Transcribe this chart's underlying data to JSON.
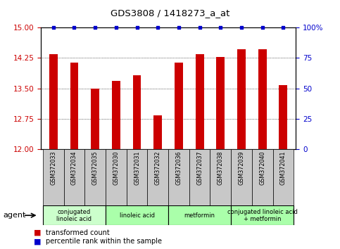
{
  "title": "GDS3808 / 1418273_a_at",
  "samples": [
    "GSM372033",
    "GSM372034",
    "GSM372035",
    "GSM372030",
    "GSM372031",
    "GSM372032",
    "GSM372036",
    "GSM372037",
    "GSM372038",
    "GSM372039",
    "GSM372040",
    "GSM372041"
  ],
  "bar_values": [
    14.35,
    14.13,
    13.5,
    13.68,
    13.82,
    12.83,
    14.13,
    14.35,
    14.28,
    14.47,
    14.47,
    13.58
  ],
  "percentile_values": [
    100,
    100,
    100,
    100,
    100,
    100,
    100,
    100,
    100,
    100,
    100,
    100
  ],
  "bar_color": "#cc0000",
  "percentile_color": "#0000cc",
  "ylim_left": [
    12,
    15
  ],
  "ylim_right": [
    0,
    100
  ],
  "yticks_left": [
    12,
    12.75,
    13.5,
    14.25,
    15
  ],
  "yticks_right": [
    0,
    25,
    50,
    75,
    100
  ],
  "groups": [
    {
      "label": "conjugated\nlinoleic acid",
      "start": 0,
      "end": 2,
      "color": "#ccffcc"
    },
    {
      "label": "linoleic acid",
      "start": 3,
      "end": 5,
      "color": "#aaffaa"
    },
    {
      "label": "metformin",
      "start": 6,
      "end": 8,
      "color": "#aaffaa"
    },
    {
      "label": "conjugated linoleic acid\n+ metformin",
      "start": 9,
      "end": 11,
      "color": "#aaffaa"
    }
  ],
  "legend_bar_label": "transformed count",
  "legend_pct_label": "percentile rank within the sample",
  "agent_label": "agent",
  "tick_label_color_left": "#cc0000",
  "tick_label_color_right": "#0000cc",
  "sample_box_color": "#c8c8c8",
  "bar_width": 0.4
}
